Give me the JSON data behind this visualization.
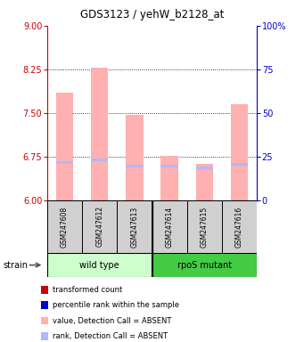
{
  "title": "GDS3123 / yehW_b2128_at",
  "samples": [
    "GSM247608",
    "GSM247612",
    "GSM247613",
    "GSM247614",
    "GSM247615",
    "GSM247616"
  ],
  "transformed_count": [
    7.85,
    8.28,
    7.47,
    6.76,
    6.63,
    7.65
  ],
  "percentile_rank": [
    21.5,
    23.0,
    19.5,
    19.5,
    18.5,
    20.5
  ],
  "bar_bottom": 6.0,
  "ylim_left": [
    6,
    9
  ],
  "ylim_right": [
    0,
    100
  ],
  "yticks_left": [
    6,
    6.75,
    7.5,
    8.25,
    9
  ],
  "yticks_right": [
    0,
    25,
    50,
    75,
    100
  ],
  "color_value_absent": "#FFB0B0",
  "color_rank_absent": "#B0B8FF",
  "color_value_present": "#CC0000",
  "color_rank_present": "#0000CC",
  "left_axis_color": "#CC0000",
  "right_axis_color": "#0000CC",
  "wt_color": "#CCFFCC",
  "rpos_color": "#44CC44",
  "sample_box_color": "#D0D0D0",
  "legend_items": [
    {
      "color": "#CC0000",
      "label": "transformed count"
    },
    {
      "color": "#0000CC",
      "label": "percentile rank within the sample"
    },
    {
      "color": "#FFB0B0",
      "label": "value, Detection Call = ABSENT"
    },
    {
      "color": "#B0B8FF",
      "label": "rank, Detection Call = ABSENT"
    }
  ]
}
